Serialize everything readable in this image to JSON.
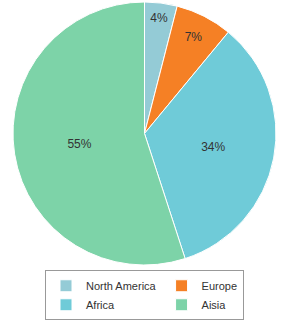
{
  "chart_data": {
    "type": "pie",
    "categories": [
      "North America",
      "Europe",
      "Africa",
      "Aisia"
    ],
    "values": [
      4,
      7,
      34,
      55
    ],
    "value_labels": [
      "4%",
      "7%",
      "34%",
      "55%"
    ],
    "colors": [
      "#94cbd6",
      "#f58025",
      "#6fcbd8",
      "#7dd3a8"
    ],
    "data_labels": true,
    "legend": "bottom"
  }
}
